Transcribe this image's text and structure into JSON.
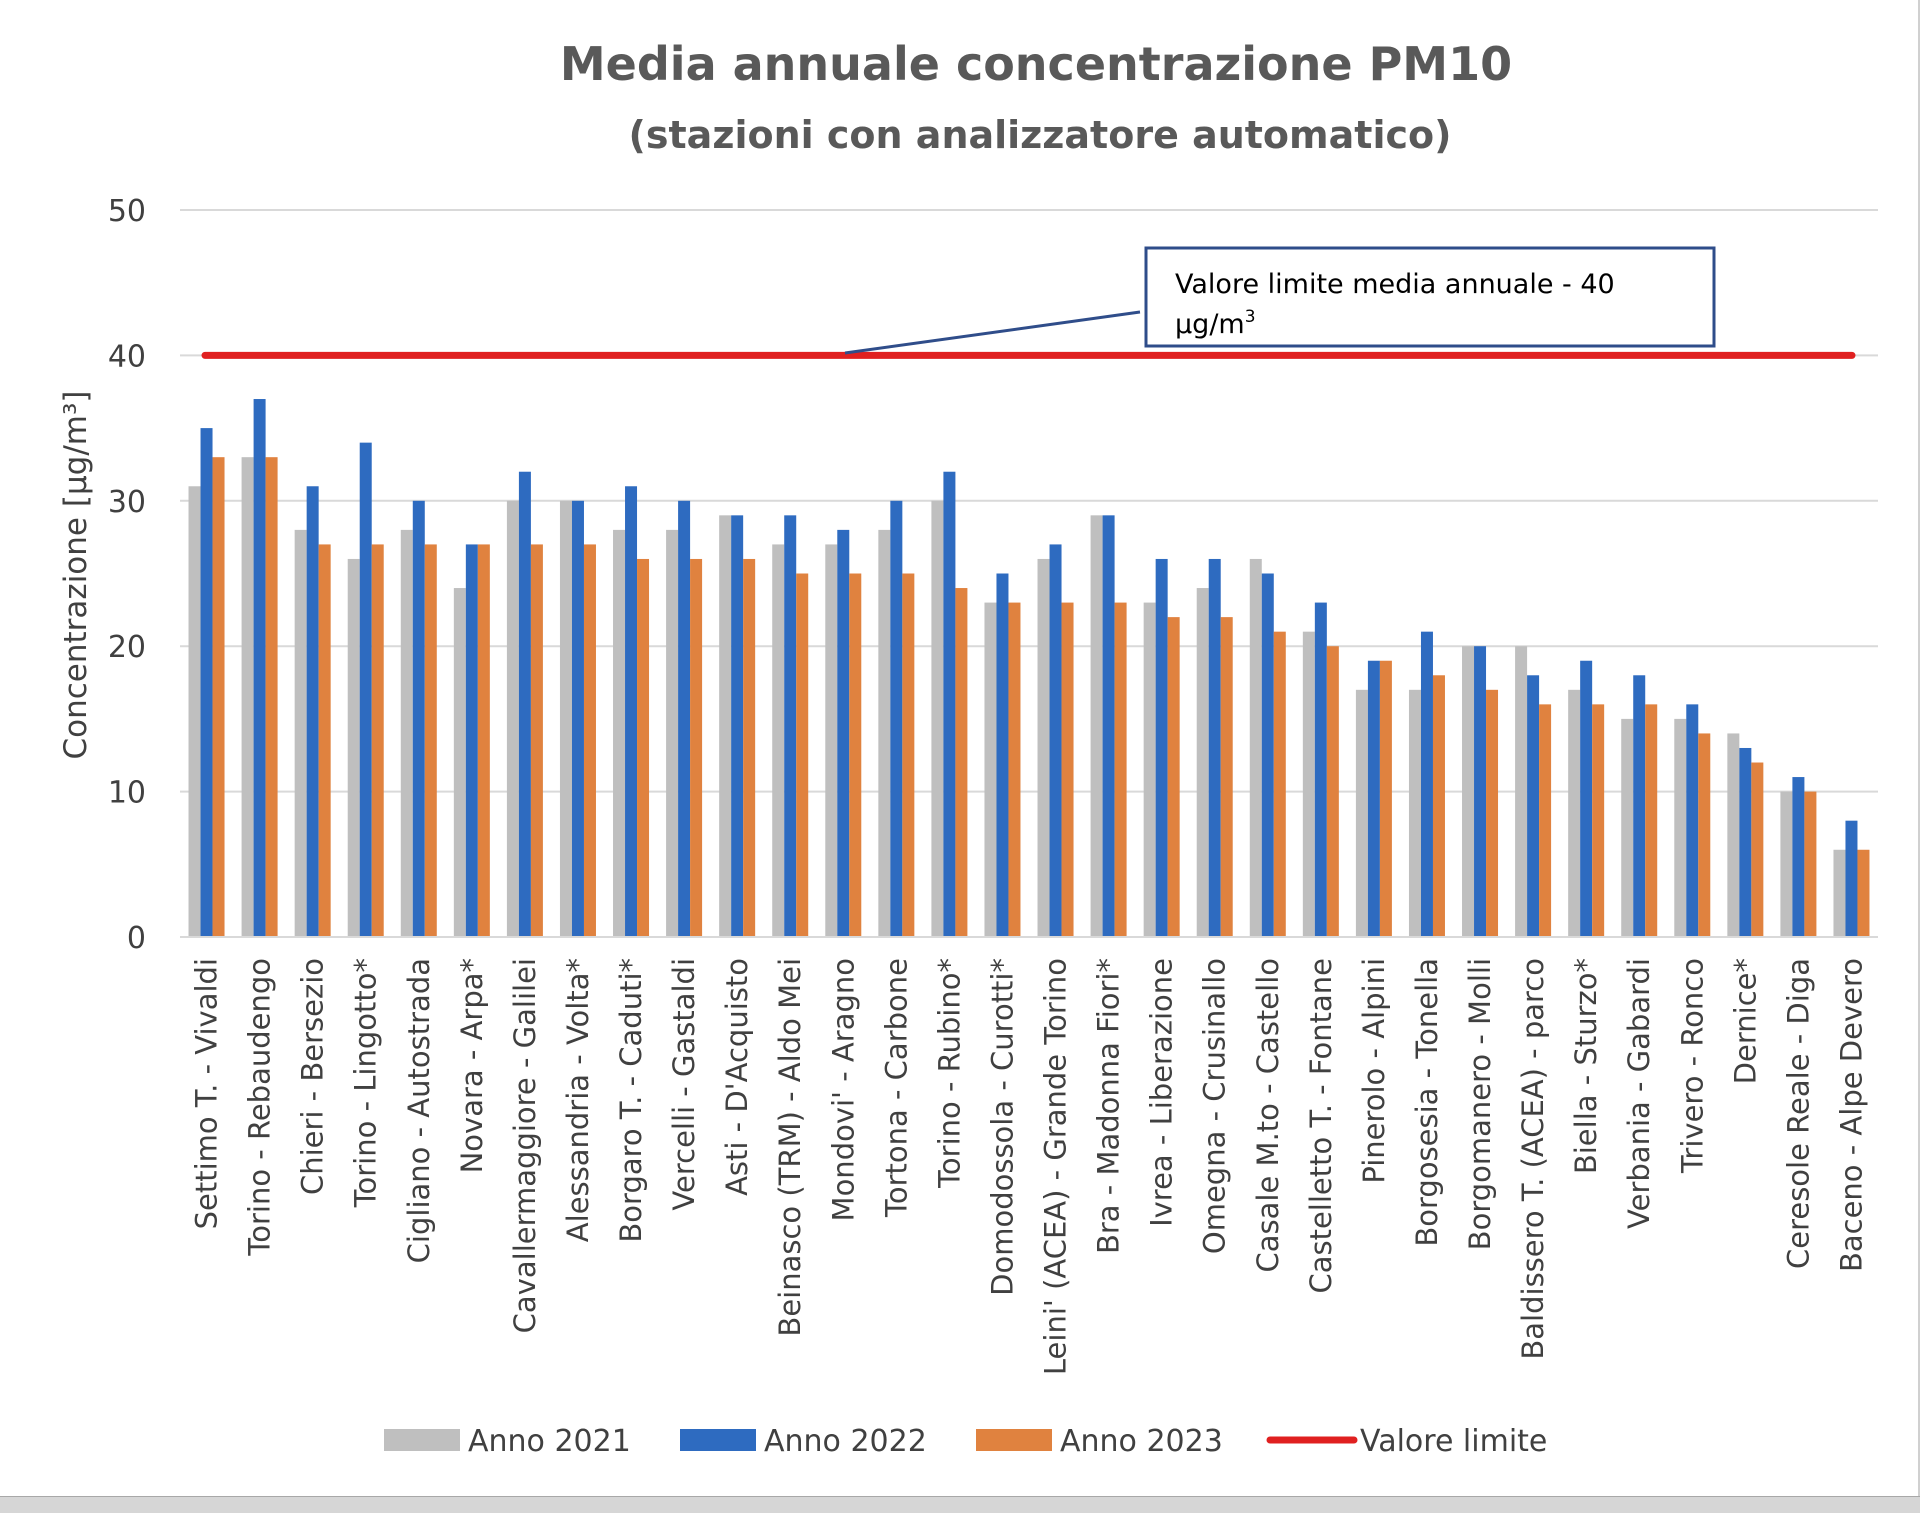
{
  "chart_data": {
    "type": "bar",
    "title": "Media annuale concentrazione PM10",
    "subtitle": "(stazioni con analizzatore automatico)",
    "xlabel": "",
    "ylabel": "Concentrazione [µg/m³]",
    "ylim": [
      0,
      50
    ],
    "yticks": [
      0,
      10,
      20,
      30,
      40,
      50
    ],
    "grid": true,
    "legend_position": "bottom",
    "categories": [
      "Settimo T. - Vivaldi",
      "Torino - Rebaudengo",
      "Chieri - Bersezio",
      "Torino - Lingotto*",
      "Cigliano - Autostrada",
      "Novara - Arpa*",
      "Cavallermaggiore - Galilei",
      "Alessandria - Volta*",
      "Borgaro T. - Caduti*",
      "Vercelli - Gastaldi",
      "Asti - D'Acquisto",
      "Beinasco (TRM) - Aldo Mei",
      "Mondovi' - Aragno",
      "Tortona - Carbone",
      "Torino - Rubino*",
      "Domodossola - Curotti*",
      "Leini' (ACEA) - Grande Torino",
      "Bra - Madonna Fiori*",
      "Ivrea - Liberazione",
      "Omegna - Crusinallo",
      "Casale M.to - Castello",
      "Castelletto T. - Fontane",
      "Pinerolo - Alpini",
      "Borgosesia - Tonella",
      "Borgomanero - Molli",
      "Baldissero T. (ACEA) - parco",
      "Biella - Sturzo*",
      "Verbania - Gabardi",
      "Trivero - Ronco",
      "Dernice*",
      "Ceresole Reale - Diga",
      "Baceno - Alpe Devero"
    ],
    "series": [
      {
        "name": "Anno 2021",
        "color": "#bfbfbf",
        "values": [
          31,
          33,
          28,
          26,
          28,
          24,
          30,
          30,
          28,
          28,
          29,
          27,
          27,
          28,
          30,
          23,
          26,
          29,
          23,
          24,
          26,
          21,
          17,
          17,
          20,
          20,
          17,
          15,
          15,
          14,
          10,
          6
        ]
      },
      {
        "name": "Anno 2022",
        "color": "#2e6bc0",
        "values": [
          35,
          37,
          31,
          34,
          30,
          27,
          32,
          30,
          31,
          30,
          29,
          29,
          28,
          30,
          32,
          25,
          27,
          29,
          26,
          26,
          25,
          23,
          19,
          21,
          20,
          18,
          19,
          18,
          16,
          13,
          11,
          8
        ]
      },
      {
        "name": "Anno 2023",
        "color": "#e0823f",
        "values": [
          33,
          33,
          27,
          27,
          27,
          27,
          27,
          27,
          26,
          26,
          26,
          25,
          25,
          25,
          24,
          23,
          23,
          23,
          22,
          22,
          21,
          20,
          19,
          18,
          17,
          16,
          16,
          16,
          14,
          12,
          10,
          6
        ]
      }
    ],
    "limit_line": {
      "name": "Valore  limite",
      "value": 40,
      "color": "#e02020"
    },
    "annotation": {
      "line1": "Valore limite media annuale  - 40",
      "line2": "µg/m",
      "line2_sup": "3"
    }
  }
}
